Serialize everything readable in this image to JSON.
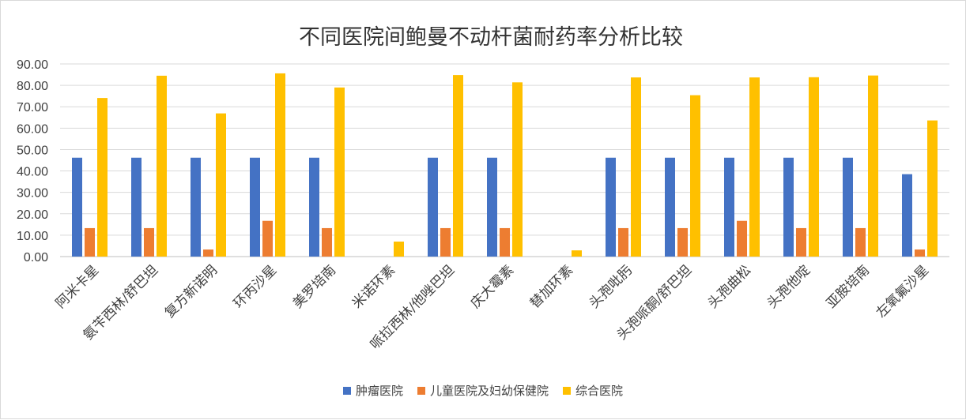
{
  "chart_data": {
    "type": "bar",
    "title": "不同医院间鲍曼不动杆菌耐药率分析比较",
    "xlabel": "",
    "ylabel": "",
    "ylim": [
      0,
      90
    ],
    "yticks": [
      "0.00",
      "10.00",
      "20.00",
      "30.00",
      "40.00",
      "50.00",
      "60.00",
      "70.00",
      "80.00",
      "90.00"
    ],
    "grid": true,
    "legend_position": "bottom",
    "categories": [
      "阿米卡星",
      "氨苄西林/舒巴坦",
      "复方新诺明",
      "环丙沙星",
      "美罗培南",
      "米诺环素",
      "哌拉西林/他唑巴坦",
      "庆大霉素",
      "替加环素",
      "头孢吡肟",
      "头孢哌酮/舒巴坦",
      "头孢曲松",
      "头孢他啶",
      "亚胺培南",
      "左氧氟沙星"
    ],
    "series": [
      {
        "name": "肿瘤医院",
        "color": "#4472C4",
        "values": [
          46.2,
          46.2,
          46.2,
          46.2,
          46.2,
          0,
          46.2,
          46.2,
          0,
          46.2,
          46.2,
          46.2,
          46.2,
          46.2,
          38.5
        ]
      },
      {
        "name": "儿童医院及妇幼保健院",
        "color": "#ED7D31",
        "values": [
          13.3,
          13.3,
          3.3,
          16.7,
          13.3,
          0,
          13.3,
          13.3,
          0,
          13.3,
          13.3,
          16.7,
          13.3,
          13.3,
          3.3
        ]
      },
      {
        "name": "综合医院",
        "color": "#FFC000",
        "values": [
          74.1,
          84.5,
          66.9,
          85.6,
          79.0,
          7.0,
          84.8,
          81.4,
          2.9,
          83.7,
          75.4,
          83.7,
          83.8,
          84.6,
          63.6
        ]
      }
    ]
  }
}
